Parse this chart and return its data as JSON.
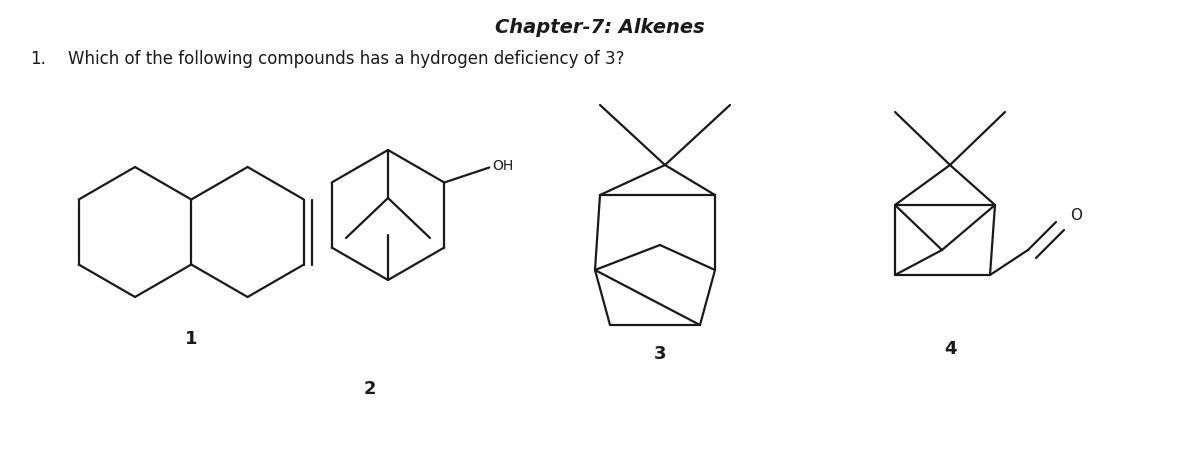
{
  "title": "Chapter-7: Alkenes",
  "question": "Which of the following compounds has a hydrogen deficiency of 3?",
  "question_number": "1.",
  "bg_color": "#ffffff",
  "text_color": "#1a1a1a",
  "line_color": "#1a1a1a",
  "line_width": 1.6,
  "title_fontsize": 14,
  "question_fontsize": 12,
  "label_fontsize": 13,
  "fig_width": 12.0,
  "fig_height": 4.66,
  "dpi": 100
}
